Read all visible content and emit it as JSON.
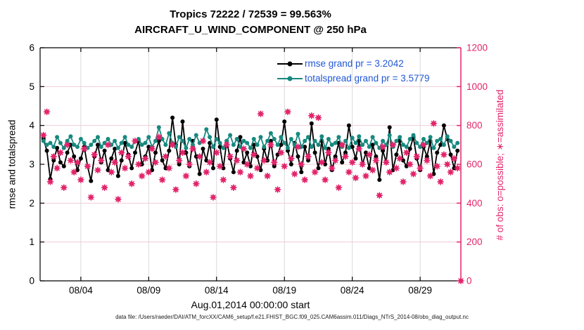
{
  "title": {
    "line1": "Tropics 72222 / 72539 = 99.563%",
    "line2": "AIRCRAFT_U_WIND_COMPONENT @ 250 hPa"
  },
  "footer": {
    "data_file": "data file: /Users/raeder/DAI/ATM_forcXX/CAM6_setup/f.e21.FHIST_BGC.f09_025.CAM6assim.011/Diags_NTrS_2014-08/obs_diag_output.nc"
  },
  "colors": {
    "rmse": "#000000",
    "totalspread": "#17897f",
    "obs": "#e2246b",
    "legend_text": "#2257d4",
    "grid_horizontal": "#f3ccd6",
    "grid_vertical": "#d9d9d9",
    "axis_left": "#000000",
    "axis_right": "#e2246b",
    "background": "#ffffff"
  },
  "chart_data": {
    "type": "line",
    "title": "Tropics 72222 / 72539 = 99.563% | AIRCRAFT_U_WIND_COMPONENT @ 250 hPa",
    "x_axis": {
      "label": "Aug.01,2014 00:00:00 start",
      "unit": "days since Aug 1, 2014 00:00",
      "range_days": [
        0,
        31
      ],
      "tick_days": [
        3,
        8,
        13,
        18,
        23,
        28
      ],
      "tick_labels": [
        "08/04",
        "08/09",
        "08/14",
        "08/19",
        "08/24",
        "08/29"
      ]
    },
    "y_left": {
      "label": "rmse and totalspread",
      "range": [
        0,
        6
      ],
      "ticks": [
        0,
        1,
        2,
        3,
        4,
        5,
        6
      ]
    },
    "y_right": {
      "label": "# of obs: o=possible; ∗=assimilated",
      "range": [
        0,
        1200
      ],
      "ticks": [
        0,
        200,
        400,
        600,
        800,
        1000,
        1200
      ]
    },
    "grid": true,
    "legend_position": "top-right-inside",
    "t_start_days": 0.25,
    "t_step_days": 0.25,
    "series": [
      {
        "name": "rmse",
        "legend": "rmse grand pr = 3.2042",
        "grand_prior_mean": 3.2042,
        "axis": "left",
        "marker": "circle",
        "color": "#000000",
        "values": [
          3.65,
          3.35,
          2.62,
          3.1,
          3.42,
          3.05,
          2.95,
          3.3,
          3.5,
          3.2,
          2.85,
          3.15,
          3.45,
          2.95,
          2.57,
          3.2,
          3.5,
          3.05,
          3.35,
          2.85,
          3.15,
          3.4,
          2.7,
          3.1,
          3.55,
          3.25,
          2.9,
          3.3,
          3.6,
          3.0,
          3.2,
          3.45,
          2.85,
          3.3,
          3.6,
          3.1,
          2.9,
          3.35,
          4.2,
          3.5,
          3.0,
          4.1,
          3.3,
          2.95,
          3.6,
          3.2,
          2.75,
          3.4,
          3.1,
          3.55,
          2.9,
          4.15,
          3.45,
          2.9,
          3.6,
          3.15,
          2.8,
          3.35,
          3.7,
          3.05,
          3.3,
          2.95,
          3.5,
          3.2,
          2.85,
          3.4,
          3.1,
          3.6,
          2.95,
          3.25,
          3.5,
          4.1,
          3.35,
          3.0,
          3.55,
          3.2,
          2.8,
          3.45,
          3.1,
          4.05,
          3.3,
          2.9,
          3.6,
          3.0,
          3.4,
          2.85,
          3.2,
          3.55,
          3.05,
          3.3,
          4.0,
          3.45,
          3.15,
          3.6,
          3.0,
          3.3,
          2.9,
          3.5,
          3.2,
          2.6,
          3.35,
          3.05,
          3.95,
          2.85,
          3.25,
          3.6,
          3.1,
          2.95,
          3.4,
          3.7,
          3.15,
          2.85,
          3.45,
          3.2,
          3.6,
          2.75,
          3.3,
          3.5,
          4.0,
          3.65,
          3.25,
          2.9,
          3.35
        ]
      },
      {
        "name": "totalspread",
        "legend": "totalspread grand pr = 3.5779",
        "grand_prior_mean": 3.5779,
        "axis": "left",
        "marker": "circle",
        "color": "#17897f",
        "values": [
          3.6,
          3.5,
          3.55,
          3.45,
          3.7,
          3.55,
          3.42,
          3.6,
          3.72,
          3.5,
          3.45,
          3.65,
          3.55,
          3.42,
          3.5,
          3.6,
          3.7,
          3.45,
          3.55,
          3.65,
          3.5,
          3.6,
          3.42,
          3.55,
          3.7,
          3.5,
          3.45,
          3.6,
          3.65,
          3.5,
          3.55,
          3.7,
          3.45,
          3.6,
          3.95,
          3.65,
          3.5,
          3.8,
          3.55,
          3.45,
          3.7,
          3.6,
          3.42,
          3.65,
          3.5,
          3.75,
          3.55,
          3.6,
          3.9,
          3.7,
          3.45,
          3.65,
          3.55,
          3.42,
          3.6,
          3.75,
          3.5,
          3.65,
          3.45,
          3.6,
          3.55,
          3.42,
          3.65,
          3.5,
          3.7,
          3.45,
          3.6,
          3.8,
          3.65,
          3.5,
          3.7,
          3.55,
          3.42,
          3.65,
          3.5,
          3.78,
          3.45,
          3.6,
          3.7,
          3.45,
          3.6,
          3.5,
          3.72,
          3.42,
          3.65,
          3.5,
          3.55,
          3.7,
          3.45,
          3.6,
          3.42,
          3.68,
          3.55,
          3.72,
          3.5,
          3.6,
          3.45,
          3.7,
          3.55,
          3.42,
          3.6,
          3.5,
          3.75,
          3.45,
          3.6,
          3.7,
          3.5,
          3.45,
          3.65,
          3.75,
          3.55,
          3.45,
          3.65,
          3.55,
          3.7,
          3.42,
          3.6,
          3.65,
          3.5,
          3.72,
          3.6,
          3.45,
          3.55
        ]
      },
      {
        "name": "observations",
        "legend": null,
        "description": "o=possible and ∗=assimilated counts overlap (99.563% assimilated)",
        "axis": "right",
        "marker": "circle-asterisk",
        "color": "#e2246b",
        "values": [
          750,
          870,
          510,
          640,
          580,
          660,
          480,
          700,
          620,
          560,
          610,
          520,
          680,
          590,
          430,
          650,
          570,
          620,
          480,
          700,
          560,
          610,
          420,
          660,
          580,
          640,
          500,
          720,
          600,
          540,
          630,
          560,
          680,
          610,
          740,
          520,
          640,
          580,
          700,
          470,
          620,
          660,
          540,
          600,
          680,
          500,
          640,
          720,
          560,
          610,
          430,
          660,
          590,
          520,
          700,
          640,
          480,
          620,
          560,
          680,
          600,
          540,
          650,
          580,
          860,
          620,
          540,
          700,
          610,
          470,
          660,
          590,
          870,
          630,
          550,
          690,
          600,
          520,
          640,
          850,
          560,
          840,
          610,
          520,
          660,
          580,
          620,
          480,
          700,
          640,
          560,
          610,
          530,
          680,
          600,
          540,
          650,
          570,
          620,
          440,
          690,
          610,
          560,
          700,
          580,
          630,
          510,
          660,
          600,
          550,
          640,
          580,
          700,
          620,
          540,
          810,
          590,
          510,
          650,
          600,
          560,
          630,
          580,
          0
        ]
      }
    ]
  }
}
